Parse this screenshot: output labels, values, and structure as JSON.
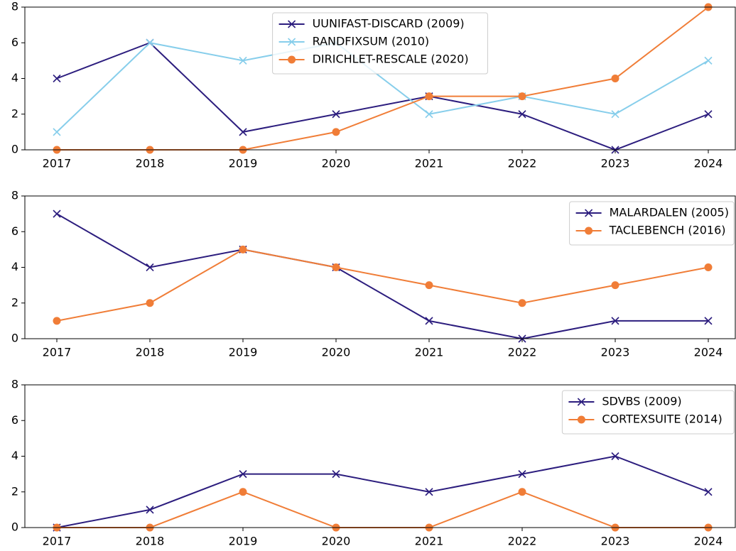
{
  "chart_data": [
    {
      "type": "line",
      "categories": [
        "2017",
        "2018",
        "2019",
        "2020",
        "2021",
        "2022",
        "2023",
        "2024"
      ],
      "series": [
        {
          "name": "UUNIFAST-DISCARD (2009)",
          "color": "#2c1d7e",
          "marker": "x",
          "values": [
            4,
            6,
            1,
            2,
            3,
            2,
            0,
            2
          ]
        },
        {
          "name": "RANDFIXSUM (2010)",
          "color": "#87ceeb",
          "marker": "x",
          "values": [
            1,
            6,
            5,
            6,
            2,
            3,
            2,
            5
          ]
        },
        {
          "name": "DIRICHLET-RESCALE (2020)",
          "color": "#f07d37",
          "marker": "o",
          "values": [
            0,
            0,
            0,
            1,
            3,
            3,
            4,
            8
          ]
        }
      ],
      "ylim": [
        0,
        8
      ],
      "yticks": [
        0,
        2,
        4,
        6,
        8
      ],
      "grid": false,
      "legend": "upper center"
    },
    {
      "type": "line",
      "categories": [
        "2017",
        "2018",
        "2019",
        "2020",
        "2021",
        "2022",
        "2023",
        "2024"
      ],
      "series": [
        {
          "name": "MALARDALEN (2005)",
          "color": "#2c1d7e",
          "marker": "x",
          "values": [
            7,
            4,
            5,
            4,
            1,
            0,
            1,
            1
          ]
        },
        {
          "name": "TACLEBENCH (2016)",
          "color": "#f07d37",
          "marker": "o",
          "values": [
            1,
            2,
            5,
            4,
            3,
            2,
            3,
            4
          ]
        }
      ],
      "ylim": [
        0,
        8
      ],
      "yticks": [
        0,
        2,
        4,
        6,
        8
      ],
      "grid": false,
      "legend": "upper right"
    },
    {
      "type": "line",
      "categories": [
        "2017",
        "2018",
        "2019",
        "2020",
        "2021",
        "2022",
        "2023",
        "2024"
      ],
      "series": [
        {
          "name": "SDVBS (2009)",
          "color": "#2c1d7e",
          "marker": "x",
          "values": [
            0,
            1,
            3,
            3,
            2,
            3,
            4,
            2
          ]
        },
        {
          "name": "CORTEXSUITE (2014)",
          "color": "#f07d37",
          "marker": "o",
          "values": [
            0,
            0,
            2,
            0,
            0,
            2,
            0,
            0
          ]
        }
      ],
      "ylim": [
        0,
        8
      ],
      "yticks": [
        0,
        2,
        4,
        6,
        8
      ],
      "grid": false,
      "legend": "upper right"
    }
  ]
}
